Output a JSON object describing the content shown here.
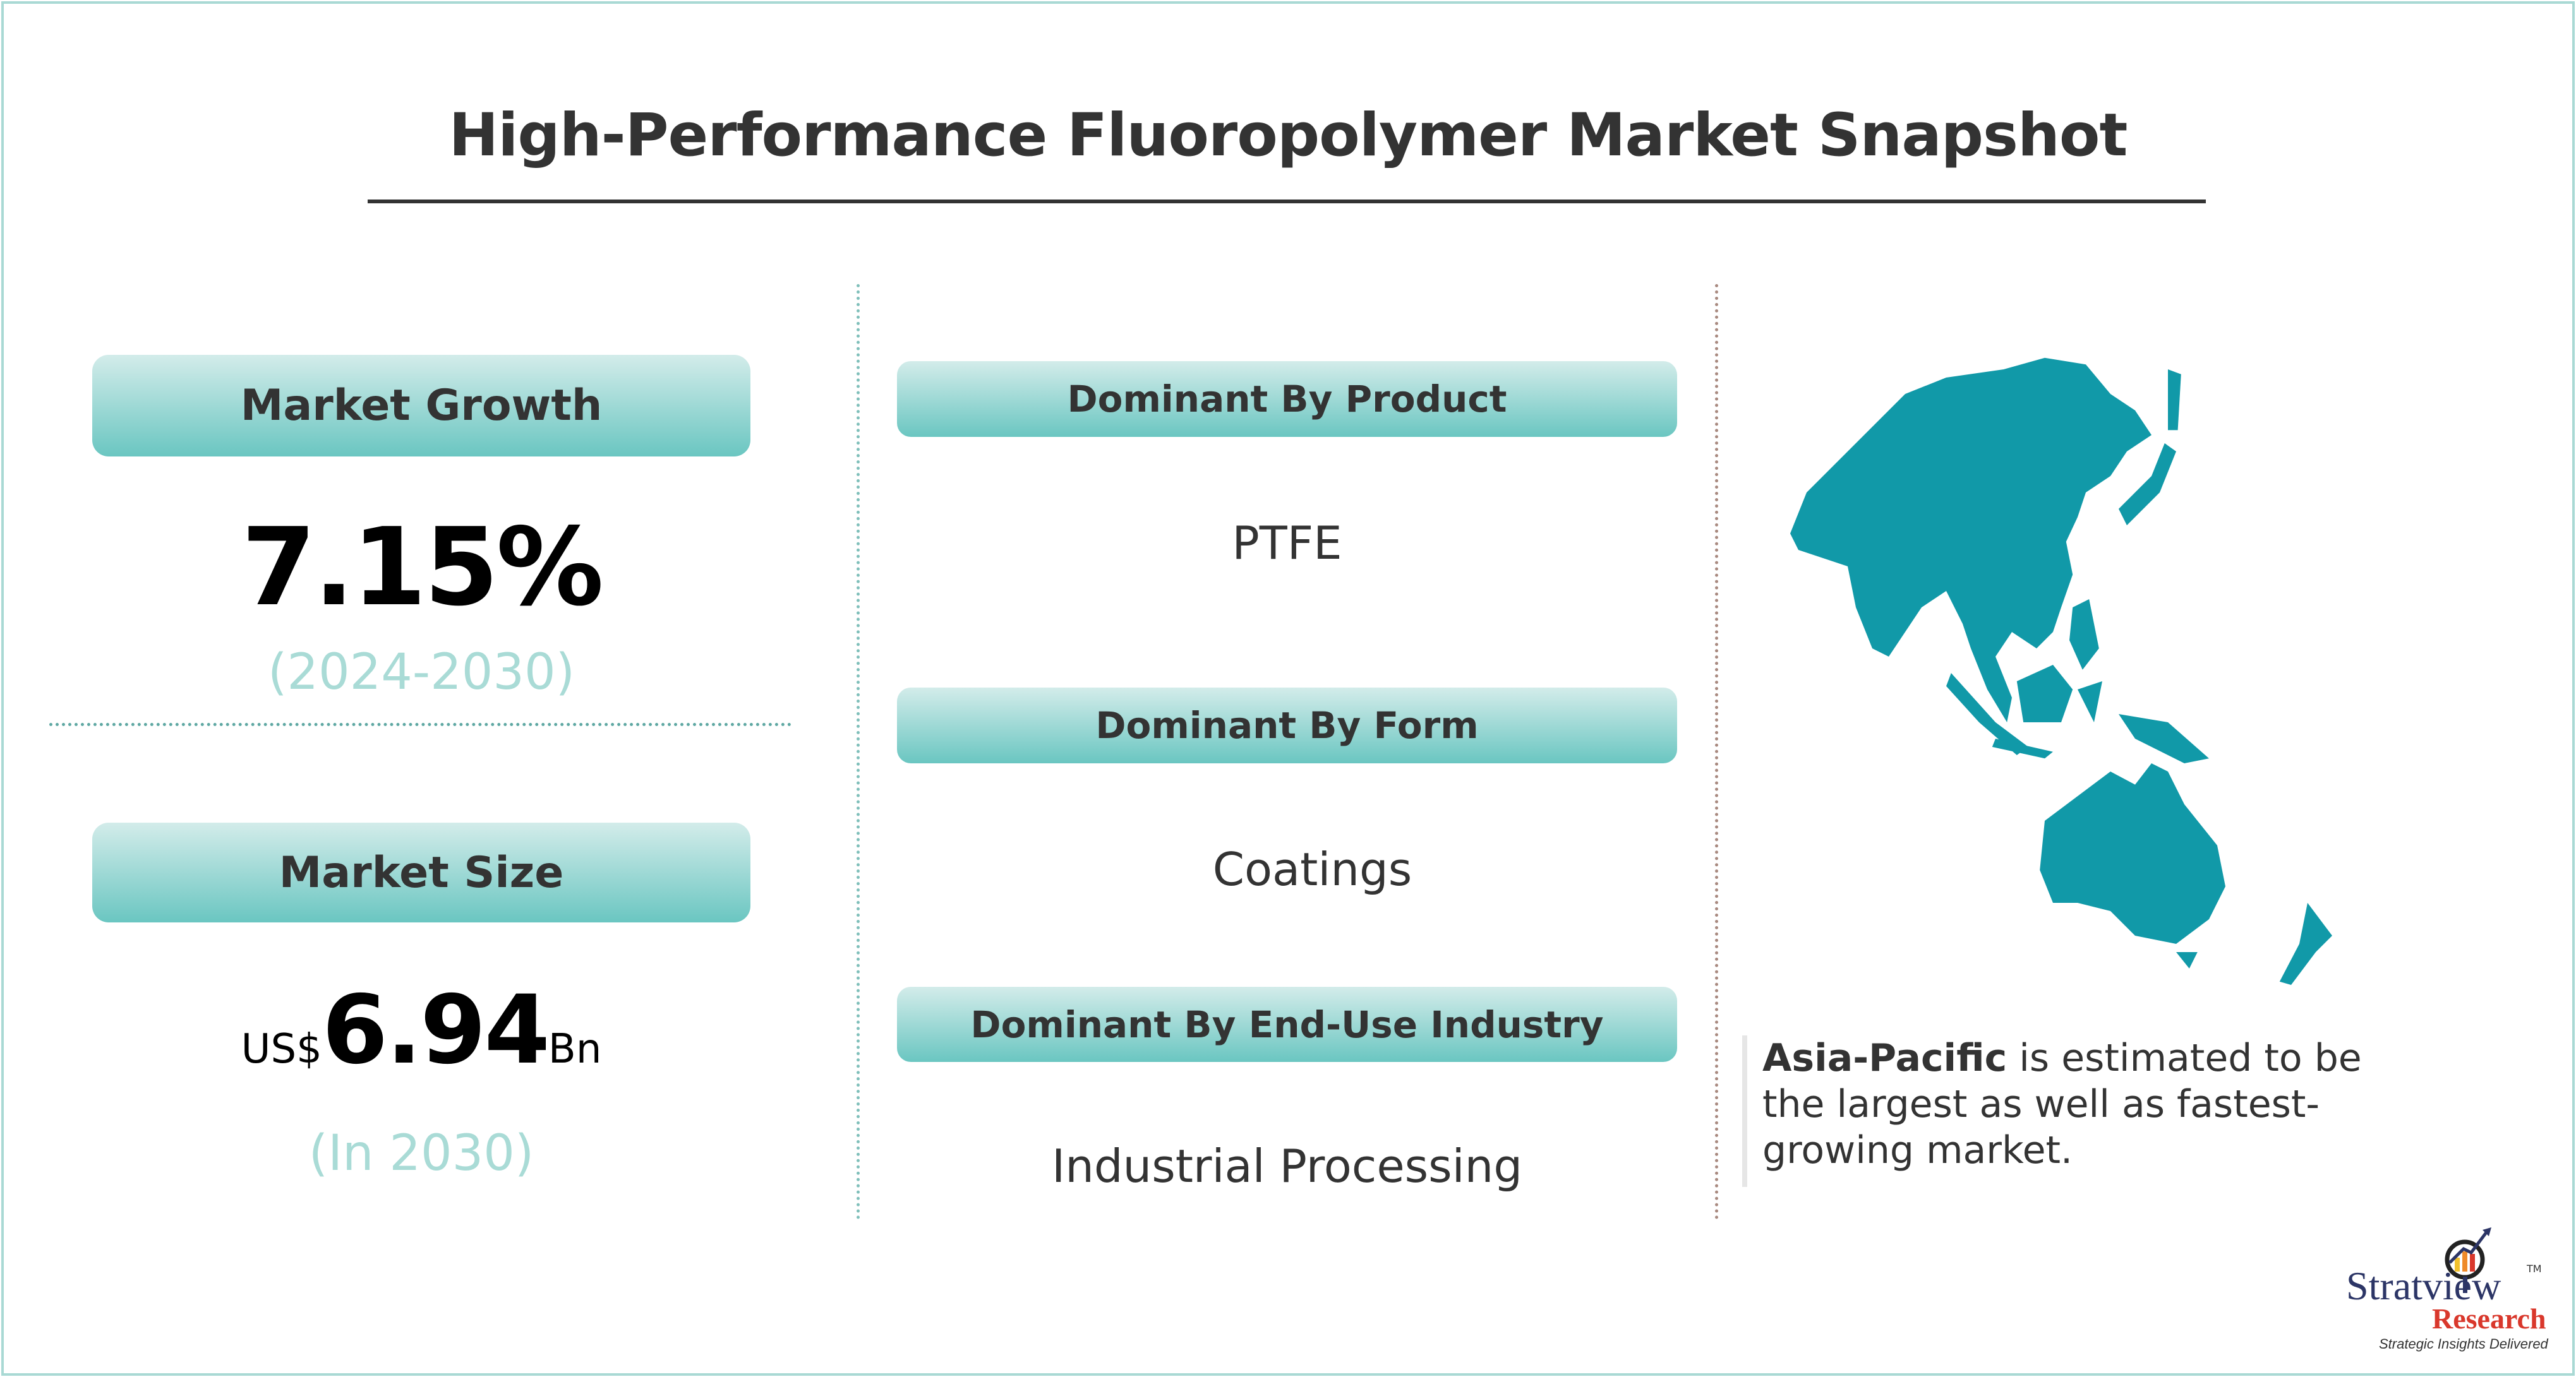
{
  "title": "High-Performance Fluoropolymer Market Snapshot",
  "market_growth": {
    "label": "Market Growth",
    "value": "7.15%",
    "period": "(2024-2030)"
  },
  "market_size": {
    "label": "Market Size",
    "prefix": "US$",
    "value": "6.94",
    "suffix": "Bn",
    "period": "(In 2030)"
  },
  "dominant": [
    {
      "label": "Dominant By Product",
      "value": "PTFE"
    },
    {
      "label": "Dominant By Form",
      "value": "Coatings"
    },
    {
      "label": "Dominant By End-Use Industry",
      "value": "Industrial Processing"
    }
  ],
  "region": {
    "name": "Asia-Pacific",
    "description": " is estimated to be the largest as well as fastest-growing market.",
    "map_color": "#1199a8"
  },
  "logo": {
    "brand": "Stratview",
    "tm": "TM",
    "sub": "Research",
    "tagline": "Strategic Insights Delivered"
  },
  "colors": {
    "pill_top": "#d3ecea",
    "pill_bottom": "#6ac6c1",
    "accent_light": "#a9dbd6",
    "logo_blue": "#2c3566",
    "logo_red": "#d9382c"
  }
}
